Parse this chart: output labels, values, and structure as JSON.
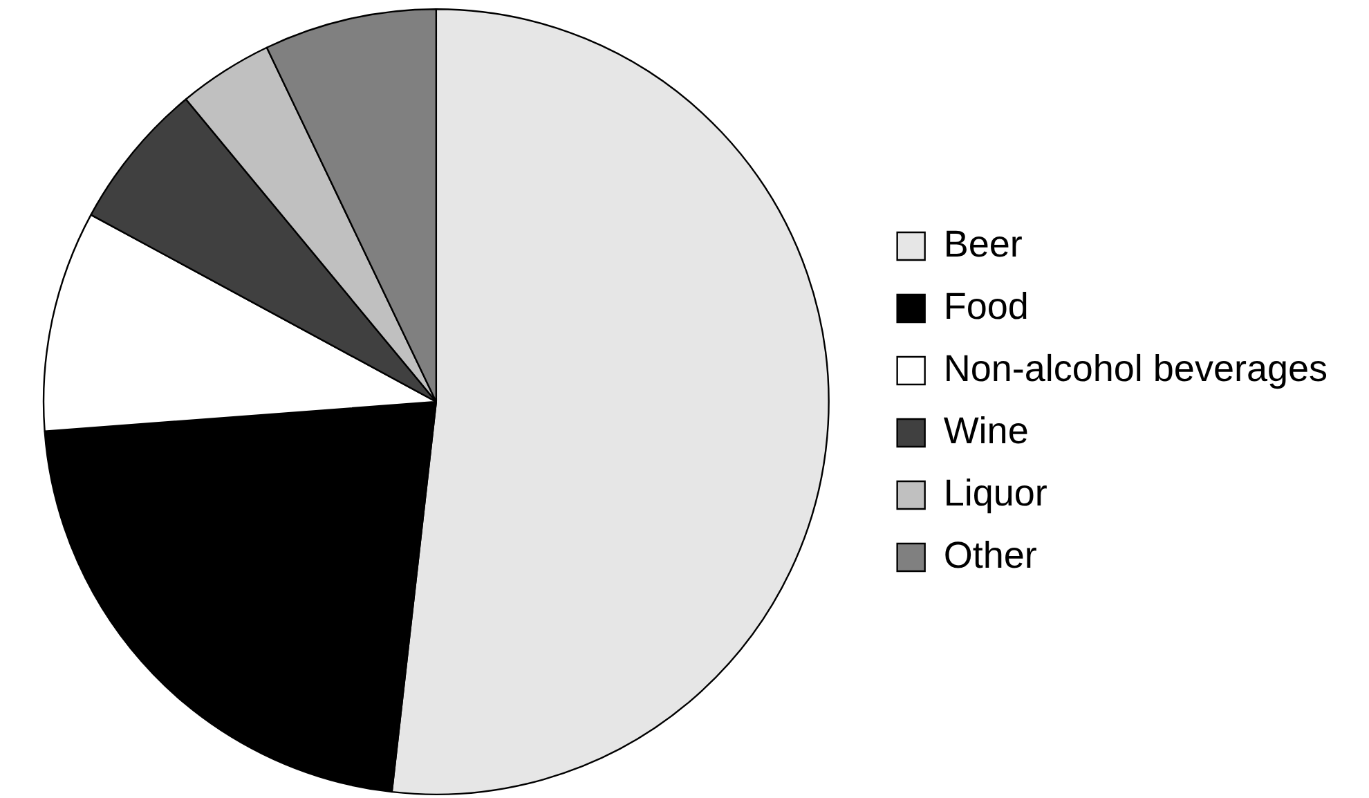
{
  "chart_data": {
    "type": "pie",
    "categories": [
      "Beer",
      "Food",
      "Non-alcohol beverages",
      "Wine",
      "Liquor",
      "Other"
    ],
    "values": [
      51.8,
      22,
      9.1,
      6.1,
      3.9,
      7.1
    ],
    "colors": [
      "#e6e6e6",
      "#000000",
      "#ffffff",
      "#404040",
      "#c0c0c0",
      "#808080"
    ],
    "legend": "right"
  }
}
